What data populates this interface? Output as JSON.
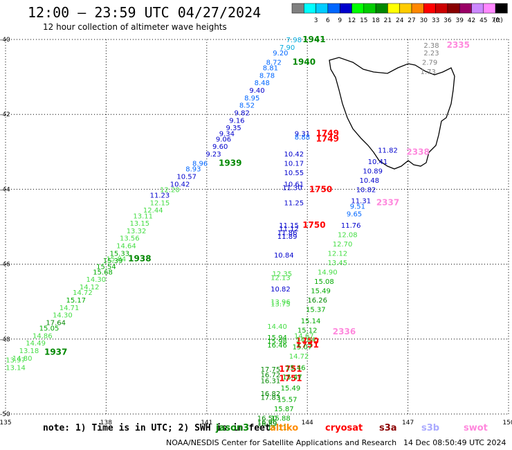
{
  "header": {
    "title": "12:00 — 23:59 UTC 04/27/2024",
    "subtitle": "12 hour collection of altimeter wave heights"
  },
  "footer": {
    "note": "note: 1) Time is in UTC; 2) SWH is in feet",
    "credit": "NOAA/NESDIS Center for Satellite Applications and Research",
    "timestamp": "14 Dec 08:50:49 UTC 2024",
    "satellites": [
      {
        "name": "jason3",
        "color": "#008000"
      },
      {
        "name": "altiko",
        "color": "#ff8c00"
      },
      {
        "name": "cryosat",
        "color": "#ff0000"
      },
      {
        "name": "s3a",
        "color": "#8b0000"
      },
      {
        "name": "s3b",
        "color": "#aaaaff"
      },
      {
        "name": "swot",
        "color": "#ff88dd"
      }
    ]
  },
  "legend": {
    "unit": "(ft)",
    "bins": [
      {
        "label": "",
        "color": "#808080"
      },
      {
        "label": "3",
        "color": "#00ffff"
      },
      {
        "label": "6",
        "color": "#00ccff"
      },
      {
        "label": "9",
        "color": "#0066ff"
      },
      {
        "label": "12",
        "color": "#0000cc"
      },
      {
        "label": "15",
        "color": "#00ff00"
      },
      {
        "label": "18",
        "color": "#00cc00"
      },
      {
        "label": "21",
        "color": "#008800"
      },
      {
        "label": "24",
        "color": "#ffff00"
      },
      {
        "label": "27",
        "color": "#ffcc00"
      },
      {
        "label": "30",
        "color": "#ff8800"
      },
      {
        "label": "33",
        "color": "#ff0000"
      },
      {
        "label": "36",
        "color": "#cc0000"
      },
      {
        "label": "39",
        "color": "#880000"
      },
      {
        "label": "42",
        "color": "#990066"
      },
      {
        "label": "45",
        "color": "#cc88ff"
      },
      {
        "label": "70",
        "color": "#ff88ff"
      },
      {
        "label": "",
        "color": "#000000"
      }
    ]
  },
  "chart_data": {
    "type": "scatter",
    "title": "12:00 — 23:59 UTC 04/27/2024",
    "xlim": [
      135,
      150
    ],
    "ylim": [
      -50,
      -40
    ],
    "grid": true,
    "x_ticks": [
      "135",
      "138",
      "141",
      "144",
      "147",
      "150"
    ],
    "y_ticks": [
      "-40",
      "-42",
      "-44",
      "-46",
      "-48",
      "-50"
    ],
    "coastline": "Tasmania",
    "points": [
      {
        "x": 143.6,
        "y": -40.0,
        "v": "7.98",
        "c": "#00aadd"
      },
      {
        "x": 143.4,
        "y": -40.2,
        "v": "7.90",
        "c": "#00aadd"
      },
      {
        "x": 143.2,
        "y": -40.35,
        "v": "9.20",
        "c": "#0066ff"
      },
      {
        "x": 143.0,
        "y": -40.6,
        "v": "8.72",
        "c": "#0066ff"
      },
      {
        "x": 142.9,
        "y": -40.75,
        "v": "8.81",
        "c": "#0066ff"
      },
      {
        "x": 142.8,
        "y": -40.95,
        "v": "8.78",
        "c": "#0066ff"
      },
      {
        "x": 142.65,
        "y": -41.15,
        "v": "8.48",
        "c": "#0066ff"
      },
      {
        "x": 142.5,
        "y": -41.35,
        "v": "9.40",
        "c": "#0000cc"
      },
      {
        "x": 142.35,
        "y": -41.55,
        "v": "8.95",
        "c": "#0066ff"
      },
      {
        "x": 142.2,
        "y": -41.75,
        "v": "8.52",
        "c": "#0066ff"
      },
      {
        "x": 142.05,
        "y": -41.95,
        "v": "9.82",
        "c": "#0000cc"
      },
      {
        "x": 141.9,
        "y": -42.15,
        "v": "9.16",
        "c": "#0000cc"
      },
      {
        "x": 141.8,
        "y": -42.35,
        "v": "9.35",
        "c": "#0000cc"
      },
      {
        "x": 141.6,
        "y": -42.5,
        "v": "9.34",
        "c": "#0000cc"
      },
      {
        "x": 141.5,
        "y": -42.65,
        "v": "9.06",
        "c": "#0000cc"
      },
      {
        "x": 141.4,
        "y": -42.85,
        "v": "9.60",
        "c": "#0000cc"
      },
      {
        "x": 141.2,
        "y": -43.05,
        "v": "9.23",
        "c": "#0000cc"
      },
      {
        "x": 140.8,
        "y": -43.3,
        "v": "8.96",
        "c": "#0066ff"
      },
      {
        "x": 140.6,
        "y": -43.45,
        "v": "8.93",
        "c": "#0066ff"
      },
      {
        "x": 140.4,
        "y": -43.65,
        "v": "10.57",
        "c": "#0000cc"
      },
      {
        "x": 140.2,
        "y": -43.85,
        "v": "10.42",
        "c": "#0000cc"
      },
      {
        "x": 139.9,
        "y": -44.0,
        "v": "12.20",
        "c": "#44dd44"
      },
      {
        "x": 139.6,
        "y": -44.15,
        "v": "11.23",
        "c": "#0000cc"
      },
      {
        "x": 139.6,
        "y": -44.35,
        "v": "12.15",
        "c": "#44dd44"
      },
      {
        "x": 139.4,
        "y": -44.55,
        "v": "12.44",
        "c": "#44dd44"
      },
      {
        "x": 139.1,
        "y": -44.7,
        "v": "13.11",
        "c": "#44dd44"
      },
      {
        "x": 139.0,
        "y": -44.9,
        "v": "13.15",
        "c": "#44dd44"
      },
      {
        "x": 138.9,
        "y": -45.1,
        "v": "13.32",
        "c": "#44dd44"
      },
      {
        "x": 138.7,
        "y": -45.3,
        "v": "13.56",
        "c": "#44dd44"
      },
      {
        "x": 138.6,
        "y": -45.5,
        "v": "14.64",
        "c": "#44dd44"
      },
      {
        "x": 138.4,
        "y": -45.7,
        "v": "15.33",
        "c": "#00aa00"
      },
      {
        "x": 138.3,
        "y": -45.85,
        "v": "15.84",
        "c": "#44dd44"
      },
      {
        "x": 138.2,
        "y": -45.9,
        "v": "15.39",
        "c": "#00aa00"
      },
      {
        "x": 138.0,
        "y": -46.05,
        "v": "15.54",
        "c": "#00aa00"
      },
      {
        "x": 137.9,
        "y": -46.2,
        "v": "15.68",
        "c": "#00aa00"
      },
      {
        "x": 137.7,
        "y": -46.4,
        "v": "14.30",
        "c": "#44dd44"
      },
      {
        "x": 137.5,
        "y": -46.6,
        "v": "14.12",
        "c": "#44dd44"
      },
      {
        "x": 137.3,
        "y": -46.75,
        "v": "14.72",
        "c": "#44dd44"
      },
      {
        "x": 137.1,
        "y": -46.95,
        "v": "15.17",
        "c": "#00aa00"
      },
      {
        "x": 136.9,
        "y": -47.15,
        "v": "14.71",
        "c": "#44dd44"
      },
      {
        "x": 136.7,
        "y": -47.35,
        "v": "14.30",
        "c": "#44dd44"
      },
      {
        "x": 136.5,
        "y": -47.55,
        "v": "17.64",
        "c": "#008800"
      },
      {
        "x": 136.3,
        "y": -47.7,
        "v": "15.05",
        "c": "#00aa00"
      },
      {
        "x": 136.1,
        "y": -47.9,
        "v": "14.86",
        "c": "#44dd44"
      },
      {
        "x": 135.9,
        "y": -48.1,
        "v": "14.49",
        "c": "#44dd44"
      },
      {
        "x": 135.7,
        "y": -48.3,
        "v": "13.18",
        "c": "#44dd44"
      },
      {
        "x": 135.5,
        "y": -48.5,
        "v": "14.80",
        "c": "#44dd44"
      },
      {
        "x": 135.3,
        "y": -48.55,
        "v": "13.97",
        "c": "#44dd44"
      },
      {
        "x": 135.3,
        "y": -48.75,
        "v": "13.14",
        "c": "#44dd44"
      },
      {
        "x": 144.2,
        "y": -40.0,
        "v": "1941",
        "c": "#008800",
        "label": true
      },
      {
        "x": 143.9,
        "y": -40.6,
        "v": "1940",
        "c": "#008800",
        "label": true
      },
      {
        "x": 141.7,
        "y": -43.3,
        "v": "1939",
        "c": "#008800",
        "label": true
      },
      {
        "x": 139.0,
        "y": -45.85,
        "v": "1938",
        "c": "#008800",
        "label": true
      },
      {
        "x": 136.5,
        "y": -48.35,
        "v": "1937",
        "c": "#008800",
        "label": true
      },
      {
        "x": 143.85,
        "y": -42.5,
        "v": "9.31",
        "c": "#0000cc"
      },
      {
        "x": 143.85,
        "y": -42.6,
        "v": "8.88",
        "c": "#0066ff"
      },
      {
        "x": 144.6,
        "y": -42.5,
        "v": "1749",
        "c": "#ff0000",
        "label": true
      },
      {
        "x": 144.6,
        "y": -42.65,
        "v": "1749",
        "c": "#ff0000",
        "label": true
      },
      {
        "x": 143.6,
        "y": -43.05,
        "v": "10.42",
        "c": "#0000cc"
      },
      {
        "x": 143.6,
        "y": -43.3,
        "v": "10.17",
        "c": "#0000cc"
      },
      {
        "x": 143.6,
        "y": -43.55,
        "v": "10.55",
        "c": "#0000cc"
      },
      {
        "x": 143.6,
        "y": -43.85,
        "v": "10.61",
        "c": "#0000cc"
      },
      {
        "x": 143.55,
        "y": -43.95,
        "v": "11.30",
        "c": "#0000cc"
      },
      {
        "x": 144.4,
        "y": -44.0,
        "v": "1750",
        "c": "#ff0000",
        "label": true
      },
      {
        "x": 143.6,
        "y": -44.35,
        "v": "11.25",
        "c": "#0000cc"
      },
      {
        "x": 143.45,
        "y": -44.95,
        "v": "11.15",
        "c": "#0000cc"
      },
      {
        "x": 143.45,
        "y": -45.05,
        "v": "11.12",
        "c": "#0000cc"
      },
      {
        "x": 143.4,
        "y": -45.15,
        "v": "11.86",
        "c": "#0000cc"
      },
      {
        "x": 143.4,
        "y": -45.25,
        "v": "11.89",
        "c": "#0000cc"
      },
      {
        "x": 144.2,
        "y": -44.95,
        "v": "1750",
        "c": "#ff0000",
        "label": true
      },
      {
        "x": 143.3,
        "y": -45.75,
        "v": "10.84",
        "c": "#0000cc"
      },
      {
        "x": 143.25,
        "y": -46.25,
        "v": "12.35",
        "c": "#44dd44"
      },
      {
        "x": 143.2,
        "y": -46.35,
        "v": "12.13",
        "c": "#44dd44"
      },
      {
        "x": 143.2,
        "y": -46.65,
        "v": "10.82",
        "c": "#0000cc"
      },
      {
        "x": 143.2,
        "y": -47.0,
        "v": "13.96",
        "c": "#44dd44"
      },
      {
        "x": 143.2,
        "y": -47.05,
        "v": "13.75",
        "c": "#44dd44"
      },
      {
        "x": 143.1,
        "y": -47.65,
        "v": "14.40",
        "c": "#44dd44"
      },
      {
        "x": 143.1,
        "y": -47.95,
        "v": "15.94",
        "c": "#00aa00"
      },
      {
        "x": 143.1,
        "y": -48.05,
        "v": "15.98",
        "c": "#00aa00"
      },
      {
        "x": 143.1,
        "y": -48.15,
        "v": "16.46",
        "c": "#00aa00"
      },
      {
        "x": 144.0,
        "y": -48.05,
        "v": "1750",
        "c": "#ff0000",
        "label": true
      },
      {
        "x": 144.0,
        "y": -48.15,
        "v": "1751",
        "c": "#ff0000",
        "label": true
      },
      {
        "x": 142.9,
        "y": -48.8,
        "v": "17.75",
        "c": "#008800"
      },
      {
        "x": 142.9,
        "y": -48.95,
        "v": "16.72",
        "c": "#008800"
      },
      {
        "x": 142.9,
        "y": -49.1,
        "v": "16.31",
        "c": "#008800"
      },
      {
        "x": 143.5,
        "y": -48.8,
        "v": "1751",
        "c": "#ff0000",
        "label": true
      },
      {
        "x": 143.5,
        "y": -49.05,
        "v": "1751",
        "c": "#ff0000",
        "label": true
      },
      {
        "x": 142.9,
        "y": -49.45,
        "v": "16.82",
        "c": "#008800"
      },
      {
        "x": 142.9,
        "y": -49.55,
        "v": "17.83",
        "c": "#008800"
      },
      {
        "x": 142.8,
        "y": -50.1,
        "v": "16.50",
        "c": "#008800"
      },
      {
        "x": 142.8,
        "y": -50.2,
        "v": "16.96",
        "c": "#008800"
      },
      {
        "x": 142.8,
        "y": -50.25,
        "v": "16.89",
        "c": "#008800"
      },
      {
        "x": 146.4,
        "y": -42.95,
        "v": "11.82",
        "c": "#0000cc"
      },
      {
        "x": 146.1,
        "y": -43.25,
        "v": "10.41",
        "c": "#0000cc"
      },
      {
        "x": 145.95,
        "y": -43.5,
        "v": "10.89",
        "c": "#0000cc"
      },
      {
        "x": 145.85,
        "y": -43.75,
        "v": "10.48",
        "c": "#0000cc"
      },
      {
        "x": 145.75,
        "y": -44.0,
        "v": "10.82",
        "c": "#0000cc"
      },
      {
        "x": 145.6,
        "y": -44.3,
        "v": "11.31",
        "c": "#0000cc"
      },
      {
        "x": 145.5,
        "y": -44.45,
        "v": "9.51",
        "c": "#0066ff"
      },
      {
        "x": 145.4,
        "y": -44.65,
        "v": "9.65",
        "c": "#0066ff"
      },
      {
        "x": 145.3,
        "y": -44.95,
        "v": "11.76",
        "c": "#0000cc"
      },
      {
        "x": 145.2,
        "y": -45.2,
        "v": "12.08",
        "c": "#44dd44"
      },
      {
        "x": 145.05,
        "y": -45.45,
        "v": "12.70",
        "c": "#44dd44"
      },
      {
        "x": 144.9,
        "y": -45.7,
        "v": "12.12",
        "c": "#44dd44"
      },
      {
        "x": 144.9,
        "y": -45.95,
        "v": "13.45",
        "c": "#44dd44"
      },
      {
        "x": 144.6,
        "y": -46.2,
        "v": "14.90",
        "c": "#44dd44"
      },
      {
        "x": 144.5,
        "y": -46.45,
        "v": "15.08",
        "c": "#00aa00"
      },
      {
        "x": 144.4,
        "y": -46.7,
        "v": "15.49",
        "c": "#00aa00"
      },
      {
        "x": 144.3,
        "y": -46.95,
        "v": "16.26",
        "c": "#008800"
      },
      {
        "x": 144.25,
        "y": -47.2,
        "v": "15.37",
        "c": "#00aa00"
      },
      {
        "x": 144.1,
        "y": -47.5,
        "v": "15.14",
        "c": "#00aa00"
      },
      {
        "x": 144.0,
        "y": -47.75,
        "v": "15.12",
        "c": "#00aa00"
      },
      {
        "x": 143.9,
        "y": -47.9,
        "v": "14.67",
        "c": "#44dd44"
      },
      {
        "x": 143.95,
        "y": -48.0,
        "v": "14.04",
        "c": "#44dd44"
      },
      {
        "x": 143.85,
        "y": -48.2,
        "v": "15.07",
        "c": "#00aa00"
      },
      {
        "x": 143.75,
        "y": -48.45,
        "v": "14.72",
        "c": "#44dd44"
      },
      {
        "x": 143.65,
        "y": -48.75,
        "v": "15.46",
        "c": "#00aa00"
      },
      {
        "x": 143.55,
        "y": -49.0,
        "v": "15.47",
        "c": "#00aa00"
      },
      {
        "x": 143.5,
        "y": -49.3,
        "v": "15.49",
        "c": "#00aa00"
      },
      {
        "x": 143.4,
        "y": -49.6,
        "v": "15.57",
        "c": "#00aa00"
      },
      {
        "x": 143.3,
        "y": -49.85,
        "v": "15.87",
        "c": "#00aa00"
      },
      {
        "x": 143.2,
        "y": -50.1,
        "v": "15.88",
        "c": "#00aa00"
      },
      {
        "x": 143.1,
        "y": -50.35,
        "v": "15.11",
        "c": "#00aa00"
      },
      {
        "x": 147.7,
        "y": -40.15,
        "v": "2.38",
        "c": "#808080"
      },
      {
        "x": 147.7,
        "y": -40.35,
        "v": "2.23",
        "c": "#808080"
      },
      {
        "x": 147.65,
        "y": -40.6,
        "v": "2.79",
        "c": "#808080"
      },
      {
        "x": 147.6,
        "y": -40.85,
        "v": "1.73",
        "c": "#808080"
      },
      {
        "x": 148.5,
        "y": -40.15,
        "v": "2335",
        "c": "#ff88dd",
        "label": true
      },
      {
        "x": 147.3,
        "y": -43.0,
        "v": "2338",
        "c": "#ff88dd",
        "label": true
      },
      {
        "x": 146.4,
        "y": -44.35,
        "v": "2337",
        "c": "#ff88dd",
        "label": true
      },
      {
        "x": 145.1,
        "y": -47.8,
        "v": "2336",
        "c": "#ff88dd",
        "label": true
      }
    ]
  }
}
